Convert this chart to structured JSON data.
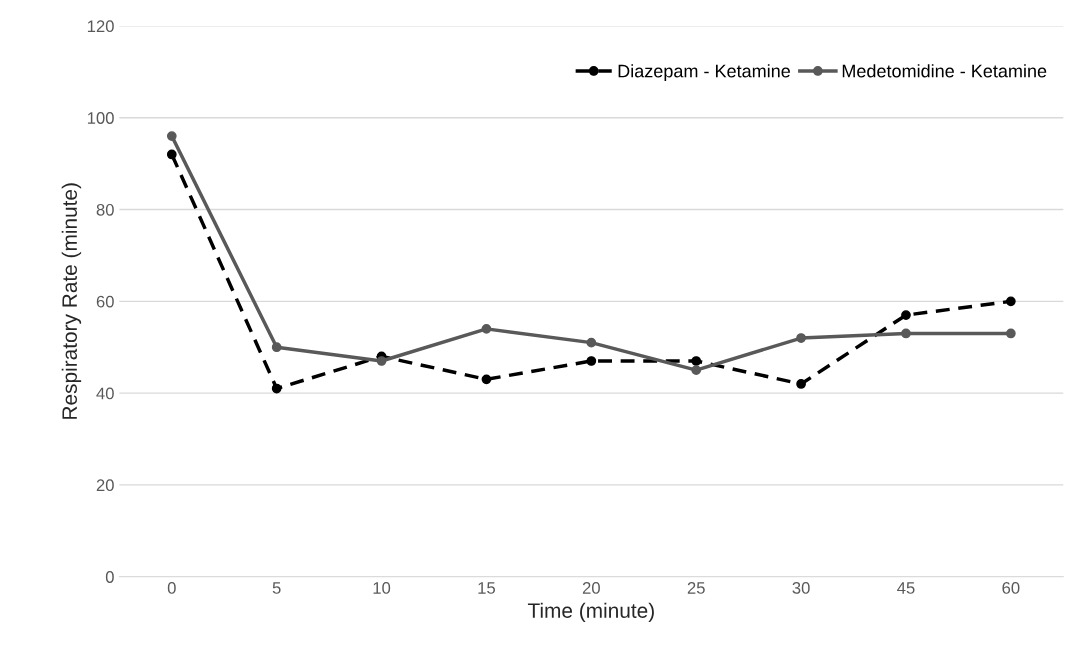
{
  "chart_data": {
    "type": "line",
    "xlabel": "Time (minute)",
    "ylabel": "Respiratory Rate (minute)",
    "categories": [
      "0",
      "5",
      "10",
      "15",
      "20",
      "25",
      "30",
      "45",
      "60"
    ],
    "ylim": [
      0,
      120
    ],
    "yticks": [
      0,
      20,
      40,
      60,
      80,
      100,
      120
    ],
    "grid": "y",
    "legend": "top right",
    "marker": "circle",
    "series": [
      {
        "name": "Diazepam - Ketamine",
        "color": "#000000",
        "line_style": "dashed",
        "values": [
          92,
          41,
          48,
          43,
          47,
          47,
          42,
          57,
          60
        ]
      },
      {
        "name": "Medetomidine - Ketamine",
        "color": "#595959",
        "line_style": "solid",
        "values": [
          96,
          50,
          47,
          54,
          51,
          45,
          52,
          53,
          53
        ]
      }
    ]
  }
}
